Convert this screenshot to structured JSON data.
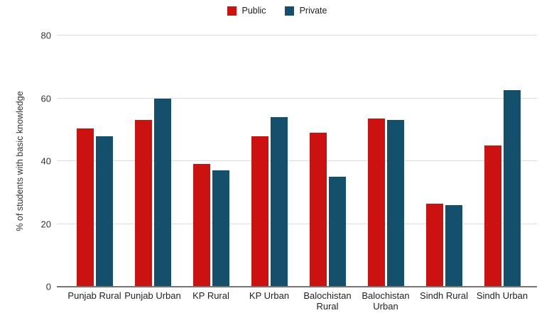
{
  "chart_data": {
    "type": "bar",
    "title": "",
    "xlabel": "",
    "ylabel": "% of students with basic knowledge",
    "ylim": [
      0,
      80
    ],
    "yticks": [
      0,
      20,
      40,
      60,
      80
    ],
    "grid": true,
    "legend_position": "top-center",
    "categories": [
      "Punjab Rural",
      "Punjab Urban",
      "KP Rural",
      "KP Urban",
      "Balochistan Rural",
      "Balochistan Urban",
      "Sindh Rural",
      "Sindh Urban"
    ],
    "series": [
      {
        "name": "Public",
        "color": "#CC1111",
        "values": [
          50.5,
          53,
          39,
          48,
          49,
          53.5,
          26.5,
          45
        ]
      },
      {
        "name": "Private",
        "color": "#14506B",
        "values": [
          48,
          60,
          37,
          54,
          35,
          53,
          26,
          62.5
        ]
      }
    ]
  },
  "colors": {
    "background": "#FFFFFF",
    "gridline": "#DCDCDC",
    "axis_line": "#757575",
    "tick_label": "#333333",
    "axis_title": "#333333",
    "legend_label": "#222222"
  }
}
